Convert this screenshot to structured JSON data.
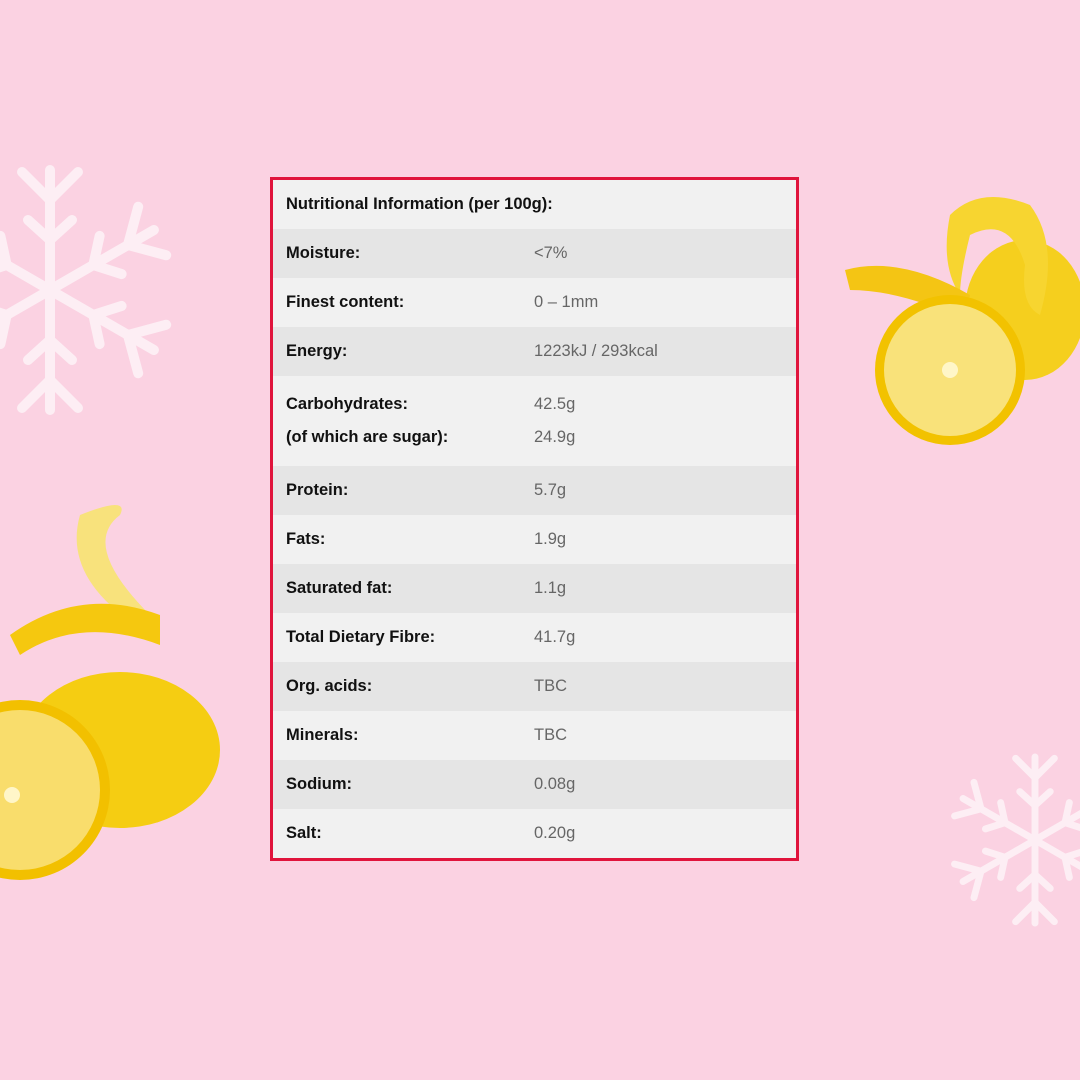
{
  "colors": {
    "background": "#fbd2e2",
    "border": "#e0143c",
    "row_light": "#f1f1f1",
    "row_dark": "#e5e5e5"
  },
  "table": {
    "title": "Nutritional Information (per 100g):",
    "rows": [
      {
        "label": "Moisture:",
        "value": "<7%"
      },
      {
        "label": "Finest content:",
        "value": "0 – 1mm"
      },
      {
        "label": "Energy:",
        "value": "1223kJ / 293kcal"
      },
      {
        "label": "Carbohydrates:",
        "value": "42.5g",
        "sub_label": "(of which are sugar):",
        "sub_value": "24.9g"
      },
      {
        "label": "Protein:",
        "value": "5.7g"
      },
      {
        "label": "Fats:",
        "value": "1.9g"
      },
      {
        "label": "Saturated fat:",
        "value": "1.1g"
      },
      {
        "label": "Total Dietary Fibre:",
        "value": "41.7g"
      },
      {
        "label": "Org. acids:",
        "value": "TBC"
      },
      {
        "label": "Minerals:",
        "value": "TBC"
      },
      {
        "label": "Sodium:",
        "value": "0.08g"
      },
      {
        "label": "Salt:",
        "value": "0.20g"
      }
    ]
  },
  "decorations": [
    "snowflake-icon",
    "snowflake-icon",
    "lemon-image",
    "lemon-image"
  ]
}
